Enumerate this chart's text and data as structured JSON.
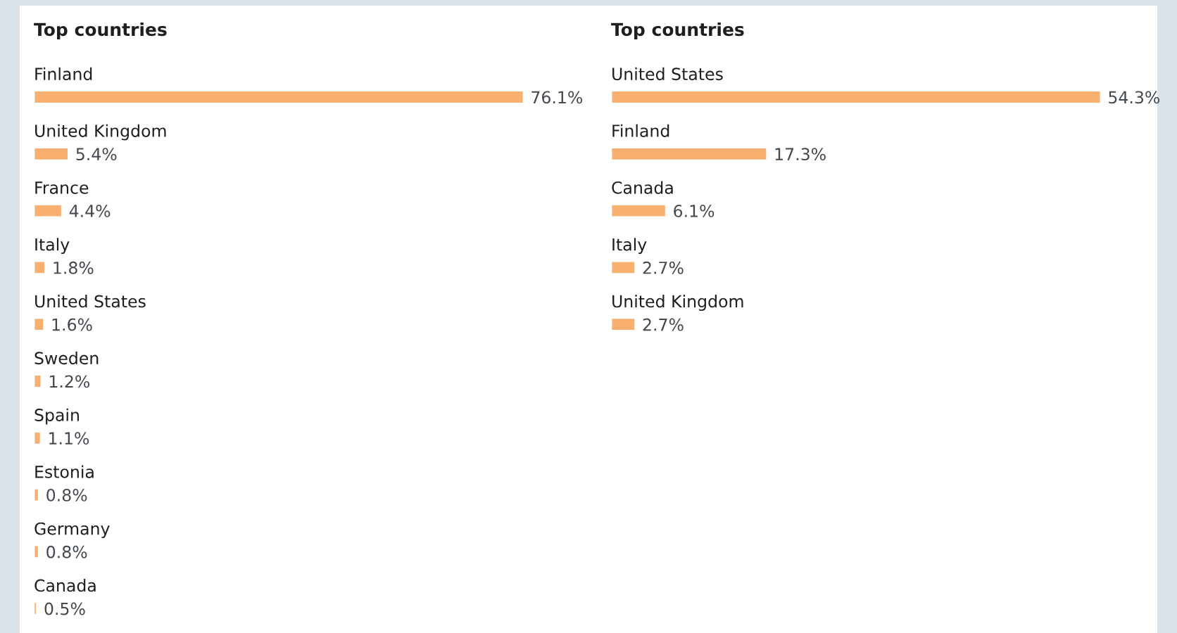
{
  "chart_data": [
    {
      "type": "bar",
      "orientation": "horizontal",
      "title": "Top countries",
      "categories": [
        "Finland",
        "United Kingdom",
        "France",
        "Italy",
        "United States",
        "Sweden",
        "Spain",
        "Estonia",
        "Germany",
        "Canada"
      ],
      "values": [
        76.1,
        5.4,
        4.4,
        1.8,
        1.6,
        1.2,
        1.1,
        0.8,
        0.8,
        0.5
      ],
      "value_labels": [
        "76.1%",
        "5.4%",
        "4.4%",
        "1.8%",
        "1.6%",
        "1.2%",
        "1.1%",
        "0.8%",
        "0.8%",
        "0.5%"
      ],
      "color": "#f7b06f"
    },
    {
      "type": "bar",
      "orientation": "horizontal",
      "title": "Top countries",
      "categories": [
        "United States",
        "Finland",
        "Canada",
        "Italy",
        "United Kingdom"
      ],
      "values": [
        54.3,
        17.3,
        6.1,
        2.7,
        2.7
      ],
      "value_labels": [
        "54.3%",
        "17.3%",
        "6.1%",
        "2.7%",
        "2.7%"
      ],
      "color": "#f7b06f"
    }
  ]
}
